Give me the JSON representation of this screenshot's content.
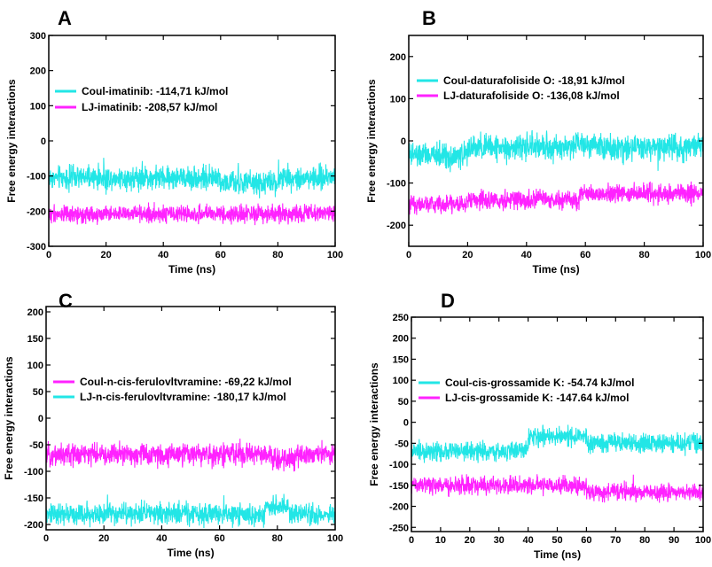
{
  "chart_data": [
    {
      "panel": "A",
      "type": "line",
      "xlabel": "Time (ns)",
      "ylabel": "Free energy interactions",
      "xlim": [
        0,
        100
      ],
      "ylim": [
        -300,
        300
      ],
      "xticks": [
        0,
        20,
        40,
        60,
        80,
        100
      ],
      "yticks": [
        -300,
        -200,
        -100,
        0,
        100,
        200,
        300
      ],
      "xtick_labels": [
        "0",
        "20",
        "40",
        "60",
        "80",
        "100"
      ],
      "ytick_labels": [
        "-300",
        "-200",
        "-100",
        "0",
        "100",
        "200",
        "300"
      ],
      "legend_position": "upper-left",
      "series": [
        {
          "name": "Coul-imatinib: -114,71 kJ/mol",
          "color": "#22e6e6",
          "mean": -105,
          "noise": 16,
          "shifts": [
            [
              60,
              80,
              -15
            ]
          ]
        },
        {
          "name": "LJ-imatinib: -208,57 kJ/mol",
          "color": "#ff22ff",
          "mean": -208,
          "noise": 12,
          "shifts": []
        }
      ]
    },
    {
      "panel": "B",
      "type": "line",
      "xlabel": "Time (ns)",
      "ylabel": "Free energy interactions",
      "xlim": [
        0,
        100
      ],
      "ylim": [
        -250,
        250
      ],
      "xticks": [
        0,
        20,
        40,
        60,
        80,
        100
      ],
      "yticks": [
        -200,
        -100,
        0,
        100,
        200
      ],
      "xtick_labels": [
        "0",
        "20",
        "40",
        "60",
        "80",
        "100"
      ],
      "ytick_labels": [
        "-200",
        "-100",
        "0",
        "100",
        "200"
      ],
      "legend_position": "upper-left",
      "series": [
        {
          "name": "Coul-daturafoliside O: -18,91 kJ/mol",
          "color": "#22e6e6",
          "mean": -15,
          "noise": 15,
          "shifts": [
            [
              0,
              20,
              -20
            ],
            [
              55,
              65,
              10
            ]
          ]
        },
        {
          "name": "LJ-daturafoliside O: -136,08 kJ/mol",
          "color": "#ff22ff",
          "mean": -140,
          "noise": 11,
          "shifts": [
            [
              0,
              20,
              -10
            ],
            [
              58,
              100,
              15
            ]
          ]
        }
      ]
    },
    {
      "panel": "C",
      "type": "line",
      "xlabel": "Time (ns)",
      "ylabel": "Free energy interactions",
      "xlim": [
        0,
        100
      ],
      "ylim": [
        -210,
        210
      ],
      "xticks": [
        0,
        20,
        40,
        60,
        80,
        100
      ],
      "yticks": [
        -200,
        -150,
        -100,
        -50,
        0,
        50,
        100,
        150,
        200
      ],
      "xtick_labels": [
        "0",
        "20",
        "40",
        "60",
        "80",
        "100"
      ],
      "ytick_labels": [
        "-200",
        "-150",
        "-100",
        "-50",
        "0",
        "50",
        "100",
        "150",
        "200"
      ],
      "legend_position": "upper-left",
      "series": [
        {
          "name": "Coul-n-cis-ferulovltvramine: -69,22 kJ/mol",
          "color": "#ff22ff",
          "mean": -68,
          "noise": 10,
          "shifts": [
            [
              78,
              86,
              -10
            ]
          ]
        },
        {
          "name": "LJ-n-cis-ferulovltvramine: -180,17 kJ/mol",
          "color": "#22e6e6",
          "mean": -180,
          "noise": 10,
          "shifts": [
            [
              76,
              84,
              15
            ]
          ]
        }
      ]
    },
    {
      "panel": "D",
      "type": "line",
      "xlabel": "Time (ns)",
      "ylabel": "Free energy interactions",
      "xlim": [
        0,
        100
      ],
      "ylim": [
        -260,
        250
      ],
      "xticks": [
        0,
        10,
        20,
        30,
        40,
        50,
        60,
        70,
        80,
        90,
        100
      ],
      "yticks": [
        -250,
        -200,
        -150,
        -100,
        -50,
        0,
        50,
        100,
        150,
        200,
        250
      ],
      "xtick_labels": [
        "0",
        "10",
        "20",
        "30",
        "40",
        "50",
        "60",
        "70",
        "80",
        "90",
        "100"
      ],
      "ytick_labels": [
        "-250",
        "-200",
        "-150",
        "-100",
        "-50",
        "0",
        "50",
        "100",
        "150",
        "200",
        "250"
      ],
      "legend_position": "upper-left",
      "series": [
        {
          "name": "Coul-cis-grossamide K: -54.74 kJ/mol",
          "color": "#22e6e6",
          "mean": -65,
          "noise": 11,
          "shifts": [
            [
              0,
              35,
              -5
            ],
            [
              40,
              60,
              30
            ],
            [
              60,
              100,
              15
            ]
          ]
        },
        {
          "name": "LJ-cis-grossamide K: -147.64 kJ/mol",
          "color": "#ff22ff",
          "mean": -150,
          "noise": 10,
          "shifts": [
            [
              60,
              100,
              -15
            ]
          ]
        }
      ]
    }
  ]
}
